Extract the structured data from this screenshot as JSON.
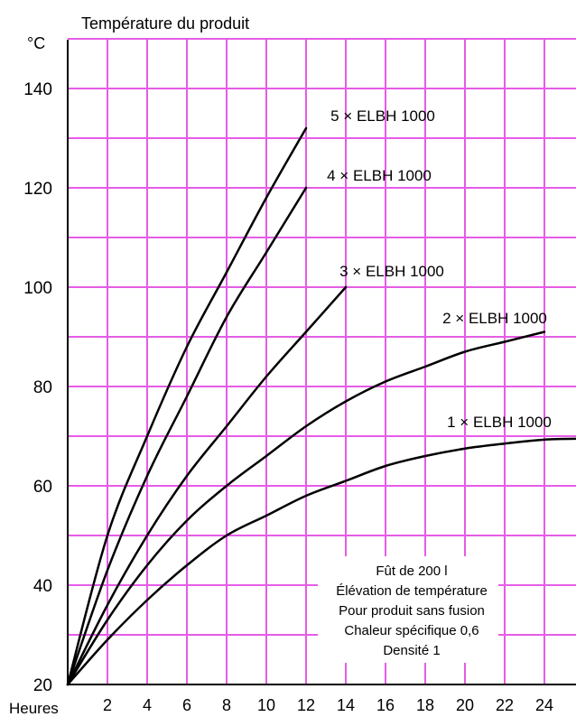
{
  "chart_data": {
    "type": "line",
    "title": "Température du produit",
    "y_unit": "°C",
    "xlabel": "Heures",
    "xlim": [
      0,
      26
    ],
    "ylim": [
      20,
      150
    ],
    "x_ticks": [
      2,
      4,
      6,
      8,
      10,
      12,
      14,
      16,
      18,
      20,
      22,
      24
    ],
    "y_ticks": [
      20,
      40,
      60,
      80,
      100,
      120,
      140
    ],
    "grid": true,
    "grid_color": "#e65ce6",
    "line_color": "#000000",
    "series": [
      {
        "name": "5 × ELBH 1000",
        "x": [
          0,
          2,
          4,
          6,
          8,
          10,
          12
        ],
        "y": [
          20,
          50,
          70,
          88,
          103,
          118,
          132
        ]
      },
      {
        "name": "4 × ELBH 1000",
        "x": [
          0,
          2,
          4,
          6,
          8,
          10,
          12
        ],
        "y": [
          20,
          43,
          62,
          78,
          94,
          107,
          120
        ]
      },
      {
        "name": "3 × ELBH 1000",
        "x": [
          0,
          2,
          4,
          6,
          8,
          10,
          12,
          14
        ],
        "y": [
          20,
          36,
          50,
          62,
          72,
          82,
          91,
          100
        ]
      },
      {
        "name": "2 × ELBH 1000",
        "x": [
          0,
          2,
          4,
          6,
          8,
          10,
          12,
          14,
          16,
          18,
          20,
          22,
          24
        ],
        "y": [
          20,
          33,
          44,
          53,
          60,
          66,
          72,
          77,
          81,
          84,
          87,
          89,
          91
        ]
      },
      {
        "name": "1 × ELBH 1000",
        "x": [
          0,
          2,
          4,
          6,
          8,
          10,
          12,
          14,
          16,
          18,
          20,
          22,
          24,
          26
        ],
        "y": [
          20,
          29,
          37,
          44,
          50,
          54,
          58,
          61,
          64,
          66,
          67.5,
          68.5,
          69.3,
          69.5
        ]
      }
    ],
    "annotation": [
      "Fût de 200 l",
      "Élévation de température",
      "Pour produit sans fusion",
      "Chaleur spécifique 0,6",
      "Densité 1"
    ]
  }
}
